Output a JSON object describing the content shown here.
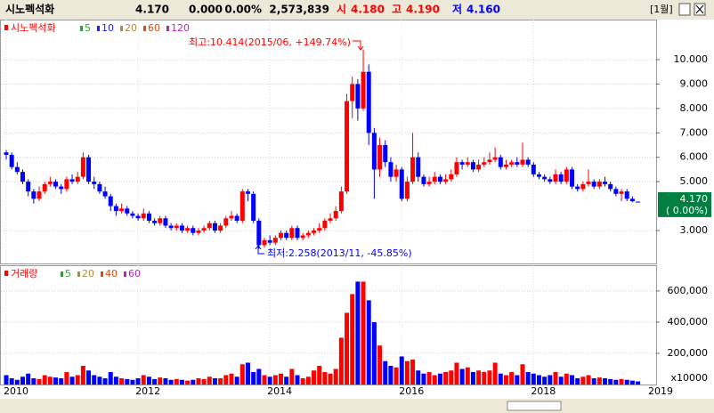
{
  "header": {
    "name": "시노펙석화",
    "price": "4.170",
    "change": "0.000",
    "rate": "0.00%",
    "volume": "2,573,839",
    "open_label": "시",
    "open": "4.180",
    "high_label": "고",
    "high": "4.190",
    "low_label": "저",
    "low": "4.160",
    "period": "[1월]"
  },
  "chart_data": {
    "type": "candlestick",
    "title": "시노펙석화",
    "categories": [
      "2010",
      null,
      null,
      null,
      null,
      null,
      null,
      null,
      null,
      null,
      null,
      null,
      null,
      null,
      null,
      null,
      null,
      null,
      null,
      null,
      null,
      null,
      null,
      null,
      "2012",
      null,
      null,
      null,
      null,
      null,
      null,
      null,
      null,
      null,
      null,
      null,
      null,
      null,
      null,
      null,
      null,
      null,
      null,
      null,
      null,
      null,
      null,
      null,
      "2014",
      null,
      null,
      null,
      null,
      null,
      null,
      null,
      null,
      null,
      null,
      null,
      null,
      null,
      null,
      null,
      null,
      null,
      null,
      null,
      null,
      null,
      null,
      null,
      "2016",
      null,
      null,
      null,
      null,
      null,
      null,
      null,
      null,
      null,
      null,
      null,
      null,
      null,
      null,
      null,
      null,
      null,
      null,
      null,
      null,
      null,
      null,
      null,
      "2018",
      null,
      null,
      null,
      null,
      null,
      null,
      null,
      null,
      null,
      null,
      null,
      null,
      null,
      null,
      null,
      null,
      null,
      null,
      null
    ],
    "x_end_label": "2019",
    "open": [
      6.2,
      6.1,
      5.6,
      5.4,
      5.0,
      4.6,
      4.3,
      4.6,
      4.9,
      5.0,
      4.8,
      4.7,
      5.1,
      5.0,
      5.2,
      6.0,
      5.0,
      4.9,
      4.6,
      4.4,
      4.0,
      3.8,
      3.9,
      3.7,
      3.6,
      3.5,
      3.7,
      3.4,
      3.3,
      3.5,
      3.2,
      3.1,
      3.2,
      3.0,
      3.1,
      2.9,
      3.0,
      3.1,
      3.3,
      3.0,
      3.2,
      3.5,
      3.6,
      3.4,
      4.6,
      4.5,
      3.4,
      2.4,
      2.6,
      2.5,
      2.7,
      2.9,
      2.7,
      3.1,
      2.7,
      2.8,
      2.9,
      3.0,
      3.1,
      3.4,
      3.5,
      3.8,
      4.6,
      8.3,
      9.0,
      8.0,
      9.5,
      7.0,
      5.5,
      6.5,
      5.8,
      5.2,
      5.5,
      4.3,
      5.0,
      6.0,
      5.2,
      4.9,
      5.0,
      5.2,
      5.0,
      5.1,
      5.3,
      5.8,
      5.7,
      5.8,
      5.5,
      5.7,
      5.8,
      5.9,
      6.0,
      5.6,
      5.7,
      5.8,
      5.7,
      5.9,
      5.7,
      5.3,
      5.2,
      5.1,
      5.0,
      5.3,
      5.0,
      5.5,
      4.8,
      4.7,
      4.9,
      5.0,
      4.8,
      5.0,
      4.9,
      4.7,
      4.5,
      4.6,
      4.3,
      4.18
    ],
    "high": [
      6.3,
      6.2,
      5.8,
      5.5,
      5.1,
      4.7,
      4.8,
      5.0,
      5.2,
      5.1,
      4.9,
      5.2,
      5.3,
      5.4,
      6.2,
      6.1,
      5.2,
      5.0,
      4.8,
      4.5,
      4.1,
      4.1,
      4.0,
      3.8,
      3.7,
      3.9,
      3.8,
      3.5,
      3.6,
      3.6,
      3.3,
      3.3,
      3.3,
      3.2,
      3.2,
      3.1,
      3.2,
      3.4,
      3.4,
      3.3,
      3.6,
      3.8,
      3.7,
      4.7,
      4.7,
      4.6,
      3.5,
      2.7,
      2.8,
      2.8,
      3.0,
      3.0,
      3.2,
      3.2,
      2.9,
      3.0,
      3.1,
      3.3,
      3.5,
      3.7,
      4.0,
      4.8,
      8.6,
      9.3,
      9.2,
      10.414,
      9.8,
      7.2,
      6.8,
      6.7,
      6.0,
      5.7,
      5.6,
      5.2,
      7.0,
      6.2,
      5.3,
      5.2,
      5.4,
      5.3,
      5.3,
      5.5,
      6.0,
      5.9,
      6.0,
      5.9,
      5.9,
      6.0,
      6.2,
      6.4,
      6.1,
      5.9,
      5.9,
      6.0,
      6.6,
      6.0,
      5.8,
      5.4,
      5.3,
      5.2,
      5.5,
      5.4,
      5.6,
      5.6,
      4.9,
      5.0,
      5.5,
      5.1,
      5.1,
      5.2,
      5.0,
      4.8,
      4.7,
      4.7,
      4.4,
      4.19
    ],
    "low": [
      5.9,
      5.5,
      5.3,
      4.9,
      4.4,
      4.1,
      4.2,
      4.5,
      4.8,
      4.7,
      4.5,
      4.6,
      4.9,
      4.9,
      5.1,
      4.9,
      4.7,
      4.5,
      4.3,
      3.8,
      3.6,
      3.7,
      3.6,
      3.5,
      3.4,
      3.4,
      3.3,
      3.2,
      3.2,
      3.1,
      3.0,
      3.0,
      2.9,
      2.9,
      2.8,
      2.8,
      2.9,
      3.0,
      2.9,
      2.9,
      3.1,
      3.4,
      3.3,
      3.3,
      4.2,
      3.3,
      2.258,
      2.3,
      2.4,
      2.4,
      2.6,
      2.6,
      2.6,
      2.6,
      2.6,
      2.7,
      2.8,
      2.9,
      3.0,
      3.3,
      3.4,
      3.7,
      4.5,
      7.6,
      7.5,
      7.9,
      6.5,
      4.3,
      5.2,
      5.6,
      5.0,
      5.0,
      4.2,
      4.2,
      4.9,
      5.0,
      4.8,
      4.8,
      4.9,
      4.9,
      4.9,
      5.0,
      5.2,
      5.5,
      5.6,
      5.4,
      5.4,
      5.6,
      5.7,
      5.8,
      5.5,
      5.5,
      5.6,
      5.6,
      5.6,
      5.6,
      5.2,
      5.1,
      5.0,
      4.9,
      4.9,
      4.9,
      4.9,
      4.7,
      4.6,
      4.6,
      4.8,
      4.7,
      4.7,
      4.8,
      4.6,
      4.4,
      4.2,
      4.2,
      4.16,
      4.16
    ],
    "close": [
      6.1,
      5.6,
      5.4,
      5.0,
      4.6,
      4.3,
      4.6,
      4.9,
      5.0,
      4.8,
      4.7,
      5.1,
      5.0,
      5.2,
      6.0,
      5.0,
      4.9,
      4.6,
      4.4,
      4.0,
      3.8,
      3.9,
      3.7,
      3.6,
      3.5,
      3.7,
      3.4,
      3.3,
      3.5,
      3.2,
      3.1,
      3.2,
      3.0,
      3.1,
      2.9,
      3.0,
      3.1,
      3.3,
      3.0,
      3.2,
      3.5,
      3.6,
      3.4,
      4.6,
      4.5,
      3.4,
      2.4,
      2.6,
      2.5,
      2.7,
      2.9,
      2.7,
      3.1,
      2.7,
      2.8,
      2.9,
      3.0,
      3.1,
      3.4,
      3.5,
      3.8,
      4.6,
      8.3,
      9.0,
      8.0,
      9.5,
      7.0,
      5.5,
      6.5,
      5.8,
      5.2,
      5.5,
      4.3,
      5.0,
      6.0,
      5.2,
      4.9,
      5.0,
      5.2,
      5.0,
      5.1,
      5.3,
      5.8,
      5.7,
      5.8,
      5.5,
      5.7,
      5.8,
      5.9,
      6.0,
      5.6,
      5.7,
      5.8,
      5.7,
      5.9,
      5.7,
      5.3,
      5.2,
      5.1,
      5.0,
      5.3,
      5.0,
      5.5,
      4.8,
      4.7,
      4.9,
      5.0,
      4.8,
      5.0,
      4.9,
      4.7,
      4.5,
      4.6,
      4.3,
      4.2,
      4.17
    ],
    "up_color": "#ff0000",
    "down_color": "#0000ff",
    "ylim": [
      1.65,
      11.64
    ],
    "yticks": [
      {
        "value": 10,
        "label": "10.000"
      },
      {
        "value": 9,
        "label": "9.000"
      },
      {
        "value": 8,
        "label": "8.000"
      },
      {
        "value": 7,
        "label": "7.000"
      },
      {
        "value": 6,
        "label": "6.000"
      },
      {
        "value": 5,
        "label": "5.000"
      },
      {
        "value": 3,
        "label": "3.000"
      }
    ],
    "grid": true,
    "legend": [
      {
        "name": "5",
        "color": "#3a9a3a"
      },
      {
        "name": "10",
        "color": "#1a1aff"
      },
      {
        "name": "20",
        "color": "#b08a3a"
      },
      {
        "name": "60",
        "color": "#d05010"
      },
      {
        "name": "120",
        "color": "#c020c0"
      }
    ],
    "annotations": [
      {
        "text": "최고:10.414(2015/06, +149.74%)",
        "color": "#ff0000"
      },
      {
        "text": "최저:2.258(2013/11, -45.85%)",
        "color": "#0000ff"
      }
    ],
    "last_label": "4.170",
    "last_change": "( 0.00%)",
    "last_color": "#008040",
    "volume": {
      "name": "거래량",
      "values": [
        60000,
        40000,
        30000,
        50000,
        70000,
        40000,
        35000,
        60000,
        50000,
        45000,
        40000,
        80000,
        50000,
        60000,
        120000,
        90000,
        60000,
        50000,
        40000,
        80000,
        50000,
        40000,
        35000,
        30000,
        40000,
        60000,
        50000,
        35000,
        45000,
        40000,
        30000,
        35000,
        30000,
        25000,
        30000,
        40000,
        35000,
        50000,
        40000,
        40000,
        60000,
        70000,
        50000,
        130000,
        140000,
        80000,
        100000,
        60000,
        50000,
        60000,
        70000,
        50000,
        100000,
        60000,
        40000,
        50000,
        90000,
        120000,
        80000,
        70000,
        100000,
        300000,
        460000,
        580000,
        660000,
        660000,
        540000,
        400000,
        250000,
        150000,
        120000,
        110000,
        180000,
        150000,
        160000,
        90000,
        70000,
        80000,
        60000,
        70000,
        80000,
        90000,
        140000,
        100000,
        110000,
        80000,
        90000,
        80000,
        90000,
        140000,
        70000,
        60000,
        80000,
        60000,
        130000,
        80000,
        70000,
        60000,
        50000,
        60000,
        80000,
        50000,
        70000,
        60000,
        40000,
        50000,
        60000,
        40000,
        45000,
        40000,
        35000,
        30000,
        35000,
        30000,
        25000,
        20000
      ],
      "ylim": [
        0,
        765000
      ],
      "yticks": [
        {
          "value": 600000,
          "label": "600,000"
        },
        {
          "value": 400000,
          "label": "400,000"
        },
        {
          "value": 200000,
          "label": "200,000"
        }
      ],
      "unit_label": "x10000",
      "legend": [
        {
          "name": "5",
          "color": "#3a9a3a"
        },
        {
          "name": "20",
          "color": "#b08a3a"
        },
        {
          "name": "40",
          "color": "#d05010"
        },
        {
          "name": "60",
          "color": "#c020c0"
        }
      ]
    }
  }
}
